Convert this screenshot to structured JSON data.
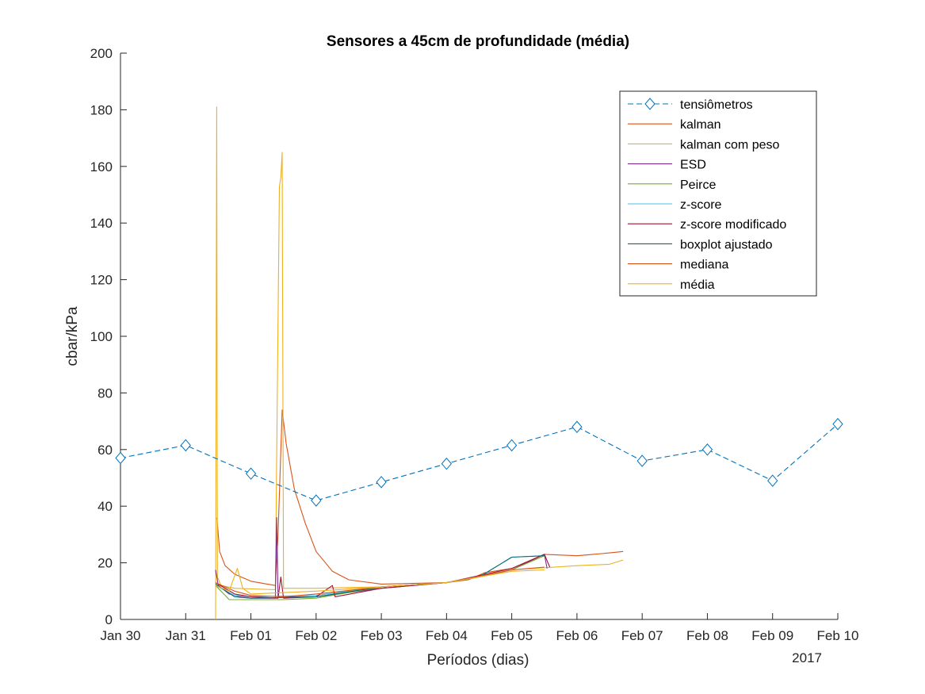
{
  "chart_data": {
    "type": "line",
    "title": "Sensores a 45cm de profundidade (média)",
    "xlabel": "Períodos (dias)",
    "ylabel": "cbar/kPa",
    "year_label": "2017",
    "x_tick_labels": [
      "Jan 30",
      "Jan 31",
      "Feb 01",
      "Feb 02",
      "Feb 03",
      "Feb 04",
      "Feb 05",
      "Feb 06",
      "Feb 07",
      "Feb 08",
      "Feb 09",
      "Feb 10"
    ],
    "xlim": [
      "2017-01-30",
      "2017-02-10"
    ],
    "ylim": [
      0,
      200
    ],
    "y_ticks": [
      0,
      20,
      40,
      60,
      80,
      100,
      120,
      140,
      160,
      180,
      200
    ],
    "grid": false,
    "legend_position": "top-right",
    "series": [
      {
        "name": "tensiômetros",
        "color": "#0072BD",
        "style": "dashed-diamond",
        "points": [
          [
            "2017-01-30",
            57
          ],
          [
            "2017-01-31",
            61.5
          ],
          [
            "2017-02-01",
            51.5
          ],
          [
            "2017-02-02",
            42
          ],
          [
            "2017-02-03",
            48.5
          ],
          [
            "2017-02-04",
            55
          ],
          [
            "2017-02-05",
            61.5
          ],
          [
            "2017-02-06",
            68
          ],
          [
            "2017-02-07",
            56
          ],
          [
            "2017-02-08",
            60
          ],
          [
            "2017-02-09",
            49
          ],
          [
            "2017-02-10",
            69
          ]
        ]
      },
      {
        "name": "kalman",
        "color": "#D95319",
        "style": "solid",
        "points": [
          [
            "2017-01-31 11:30",
            36
          ],
          [
            "2017-01-31 12:30",
            24
          ],
          [
            "2017-01-31 14:30",
            19
          ],
          [
            "2017-01-31 18:00",
            16
          ],
          [
            "2017-02-01 00:00",
            13.5
          ],
          [
            "2017-02-01 06:00",
            12.5
          ],
          [
            "2017-02-01 09:00",
            12
          ],
          [
            "2017-02-01 10:00",
            30
          ],
          [
            "2017-02-01 11:30",
            74
          ],
          [
            "2017-02-01 13:00",
            62
          ],
          [
            "2017-02-01 16:00",
            46
          ],
          [
            "2017-02-01 20:00",
            34
          ],
          [
            "2017-02-02 00:00",
            24
          ],
          [
            "2017-02-02 06:00",
            17
          ],
          [
            "2017-02-02 12:00",
            14
          ],
          [
            "2017-02-03 00:00",
            12.5
          ],
          [
            "2017-02-04 00:00",
            13
          ],
          [
            "2017-02-04 08:00",
            14
          ],
          [
            "2017-02-04 14:00",
            16.5
          ],
          [
            "2017-02-05 00:00",
            18
          ],
          [
            "2017-02-05 12:00",
            23
          ],
          [
            "2017-02-06 00:00",
            22.5
          ],
          [
            "2017-02-06 06:00",
            23
          ],
          [
            "2017-02-06 12:00",
            23.5
          ],
          [
            "2017-02-06 17:00",
            24
          ]
        ]
      },
      {
        "name": "kalman com peso",
        "color": "#EDB120",
        "style": "solid",
        "points": [
          [
            "2017-01-31 11:00",
            0
          ],
          [
            "2017-01-31 11:25",
            181
          ],
          [
            "2017-01-31 11:40",
            15
          ],
          [
            "2017-01-31 13:00",
            12
          ],
          [
            "2017-01-31 18:00",
            11
          ],
          [
            "2017-02-01 09:00",
            10.5
          ],
          [
            "2017-02-01 10:30",
            153
          ],
          [
            "2017-02-01 11:00",
            156
          ],
          [
            "2017-02-01 11:30",
            165
          ],
          [
            "2017-02-01 12:00",
            11
          ],
          [
            "2017-02-02 00:00",
            11
          ],
          [
            "2017-02-03 00:00",
            11.5
          ],
          [
            "2017-02-04 00:00",
            13
          ],
          [
            "2017-02-05 00:00",
            17.5
          ],
          [
            "2017-02-06 00:00",
            19
          ],
          [
            "2017-02-06 12:00",
            19.5
          ],
          [
            "2017-02-06 17:00",
            21
          ]
        ]
      },
      {
        "name": "ESD",
        "color": "#7E2F8E",
        "style": "solid",
        "points": [
          [
            "2017-01-31 11:00",
            17.5
          ],
          [
            "2017-01-31 12:00",
            12
          ],
          [
            "2017-01-31 16:00",
            9
          ],
          [
            "2017-01-31 20:00",
            8
          ],
          [
            "2017-02-01 00:00",
            7.5
          ],
          [
            "2017-02-01 06:00",
            7.5
          ],
          [
            "2017-02-01 09:00",
            7.5
          ],
          [
            "2017-02-01 09:30",
            36
          ],
          [
            "2017-02-01 10:00",
            8
          ],
          [
            "2017-02-02 00:00",
            8
          ],
          [
            "2017-02-03 00:00",
            11
          ],
          [
            "2017-02-04 00:00",
            13
          ],
          [
            "2017-02-04 12:00",
            15
          ],
          [
            "2017-02-05 00:00",
            17.5
          ],
          [
            "2017-02-05 12:00",
            23
          ],
          [
            "2017-02-05 13:00",
            18
          ]
        ]
      },
      {
        "name": "Peirce",
        "color": "#77AC30",
        "style": "solid",
        "points": [
          [
            "2017-01-31 11:00",
            12
          ],
          [
            "2017-01-31 16:00",
            7
          ],
          [
            "2017-01-31 18:00",
            7
          ],
          [
            "2017-02-01 00:00",
            7
          ],
          [
            "2017-02-01 12:00",
            7
          ],
          [
            "2017-02-02 00:00",
            7.5
          ],
          [
            "2017-02-03 00:00",
            11.5
          ],
          [
            "2017-02-04 00:00",
            13
          ],
          [
            "2017-02-04 12:00",
            15
          ],
          [
            "2017-02-05 00:00",
            17.5
          ],
          [
            "2017-02-05 12:00",
            22.5
          ]
        ]
      },
      {
        "name": "z-score",
        "color": "#4DBEEE",
        "style": "solid",
        "points": [
          [
            "2017-01-31 11:00",
            12
          ],
          [
            "2017-01-31 18:00",
            8.5
          ],
          [
            "2017-02-01 00:00",
            8
          ],
          [
            "2017-02-02 00:00",
            8.5
          ],
          [
            "2017-02-03 00:00",
            11.5
          ],
          [
            "2017-02-04 00:00",
            13
          ],
          [
            "2017-02-04 12:00",
            15
          ],
          [
            "2017-02-05 00:00",
            22
          ],
          [
            "2017-02-05 12:00",
            22.5
          ]
        ]
      },
      {
        "name": "z-score modificado",
        "color": "#A2142F",
        "style": "solid",
        "points": [
          [
            "2017-01-31 11:00",
            13
          ],
          [
            "2017-01-31 18:00",
            9
          ],
          [
            "2017-02-01 00:00",
            8
          ],
          [
            "2017-02-01 10:00",
            7.5
          ],
          [
            "2017-02-01 11:00",
            15
          ],
          [
            "2017-02-01 12:00",
            7.5
          ],
          [
            "2017-02-02 00:00",
            8
          ],
          [
            "2017-02-02 06:00",
            12
          ],
          [
            "2017-02-02 07:00",
            8
          ],
          [
            "2017-02-03 00:00",
            11
          ],
          [
            "2017-02-04 00:00",
            13
          ],
          [
            "2017-02-05 00:00",
            18
          ],
          [
            "2017-02-05 12:00",
            23
          ],
          [
            "2017-02-05 14:00",
            18.5
          ]
        ]
      },
      {
        "name": "boxplot ajustado",
        "color": "#0A6E6E",
        "style": "solid",
        "points": [
          [
            "2017-01-31 11:00",
            12.5
          ],
          [
            "2017-01-31 18:00",
            8
          ],
          [
            "2017-02-01 00:00",
            7.5
          ],
          [
            "2017-02-02 00:00",
            8
          ],
          [
            "2017-02-03 00:00",
            11.5
          ],
          [
            "2017-02-04 00:00",
            13
          ],
          [
            "2017-02-04 12:00",
            15
          ],
          [
            "2017-02-05 00:00",
            22
          ],
          [
            "2017-02-05 12:00",
            22.5
          ]
        ]
      },
      {
        "name": "mediana",
        "color": "#D95319",
        "style": "solid",
        "points": [
          [
            "2017-01-31 11:00",
            13
          ],
          [
            "2017-01-31 18:00",
            10
          ],
          [
            "2017-02-01 00:00",
            8.5
          ],
          [
            "2017-02-01 12:00",
            8
          ],
          [
            "2017-02-02 00:00",
            9
          ],
          [
            "2017-02-03 00:00",
            11.5
          ],
          [
            "2017-02-04 00:00",
            13
          ],
          [
            "2017-02-05 00:00",
            17.5
          ],
          [
            "2017-02-05 12:00",
            18.5
          ]
        ]
      },
      {
        "name": "média",
        "color": "#EDB120",
        "style": "solid",
        "points": [
          [
            "2017-01-31 11:00",
            12
          ],
          [
            "2017-01-31 16:00",
            10
          ],
          [
            "2017-01-31 19:00",
            18
          ],
          [
            "2017-01-31 21:00",
            11
          ],
          [
            "2017-02-01 00:00",
            9
          ],
          [
            "2017-02-02 00:00",
            10
          ],
          [
            "2017-02-03 00:00",
            11.5
          ],
          [
            "2017-02-04 00:00",
            13
          ],
          [
            "2017-02-05 00:00",
            17
          ],
          [
            "2017-02-05 12:00",
            17.5
          ]
        ]
      }
    ]
  }
}
